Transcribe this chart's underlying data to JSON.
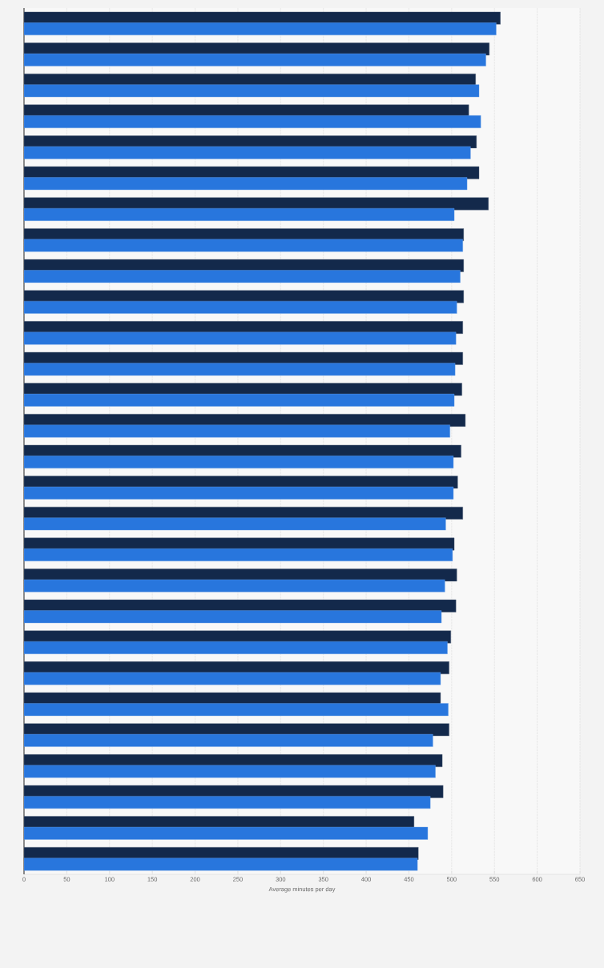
{
  "chart_data": {
    "type": "bar",
    "orientation": "horizontal",
    "xlabel": "Average minutes per day",
    "categories": [
      null,
      null,
      null,
      null,
      null,
      null,
      null,
      null,
      null,
      null,
      null,
      null,
      null,
      null,
      null,
      null,
      null,
      null,
      null,
      null,
      null,
      null,
      null,
      null,
      null,
      null,
      null,
      null
    ],
    "series": [
      {
        "color": "#13294b",
        "values": [
          557,
          544,
          528,
          520,
          529,
          532,
          543,
          514,
          514,
          514,
          513,
          513,
          512,
          516,
          511,
          507,
          513,
          503,
          506,
          505,
          499,
          497,
          487,
          497,
          489,
          490,
          456,
          461
        ]
      },
      {
        "color": "#2876dd",
        "values": [
          552,
          540,
          532,
          534,
          522,
          518,
          503,
          513,
          510,
          506,
          505,
          504,
          503,
          498,
          502,
          502,
          493,
          501,
          492,
          488,
          495,
          487,
          496,
          478,
          481,
          475,
          472,
          460
        ]
      }
    ],
    "xlim": [
      0,
      650
    ],
    "xticks": [
      0,
      50,
      100,
      150,
      200,
      250,
      300,
      350,
      400,
      450,
      500,
      550,
      600,
      650
    ],
    "grid": "x",
    "tick_labels": "x"
  }
}
